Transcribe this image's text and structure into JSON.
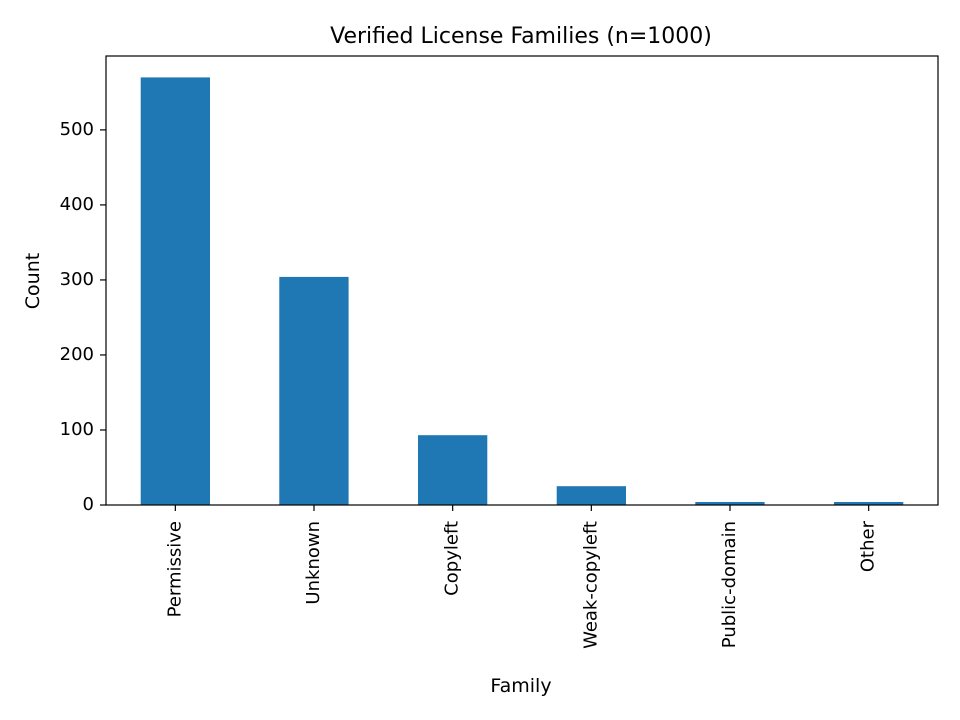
{
  "chart_data": {
    "type": "bar",
    "title": "Verified License Families (n=1000)",
    "xlabel": "Family",
    "ylabel": "Count",
    "categories": [
      "Permissive",
      "Unknown",
      "Copyleft",
      "Weak-copyleft",
      "Public-domain",
      "Other"
    ],
    "values": [
      570,
      304,
      93,
      25,
      4,
      4
    ],
    "ylim": [
      0,
      598.5
    ],
    "yticks": [
      0,
      100,
      200,
      300,
      400,
      500
    ],
    "grid": false,
    "legend": "none",
    "bar_color": "#1f77b4",
    "axis_color": "#000000"
  }
}
